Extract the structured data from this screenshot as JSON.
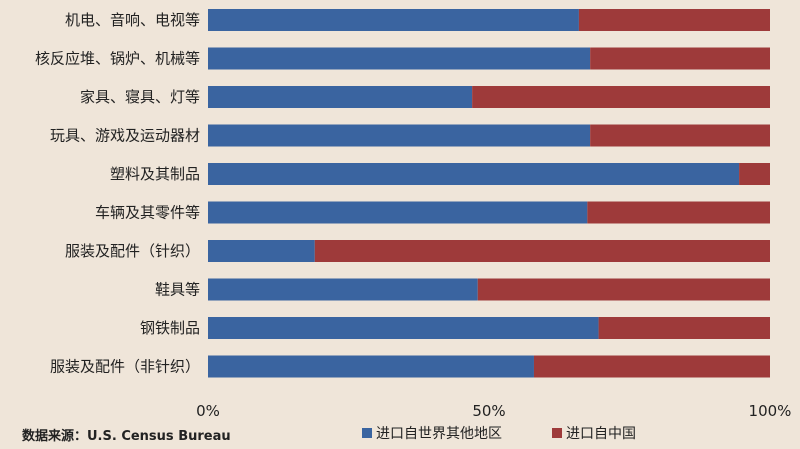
{
  "chart_data": {
    "type": "bar",
    "orientation": "horizontal",
    "stacked": true,
    "categories": [
      "机电、音响、电视等",
      "核反应堆、锅炉、机械等",
      "家具、寝具、灯等",
      "玩具、游戏及运动器材",
      "塑料及其制品",
      "车辆及其零件等",
      "服装及配件（针织）",
      "鞋具等",
      "钢铁制品",
      "服装及配件（非针织）"
    ],
    "series": [
      {
        "name": "进口自世界其他地区",
        "color": "#3a64a0",
        "values": [
          0.66,
          0.68,
          0.47,
          0.68,
          0.945,
          0.675,
          0.19,
          0.48,
          0.695,
          0.58
        ]
      },
      {
        "name": "进口自中国",
        "color": "#9e3a3a",
        "values": [
          0.34,
          0.32,
          0.53,
          0.32,
          0.055,
          0.325,
          0.81,
          0.52,
          0.305,
          0.42
        ]
      }
    ],
    "xlim": [
      0,
      1
    ],
    "xticks": [
      "0%",
      "50%",
      "100%"
    ],
    "grid": false,
    "legend_position": "bottom"
  },
  "source": "数据来源：U.S. Census Bureau"
}
